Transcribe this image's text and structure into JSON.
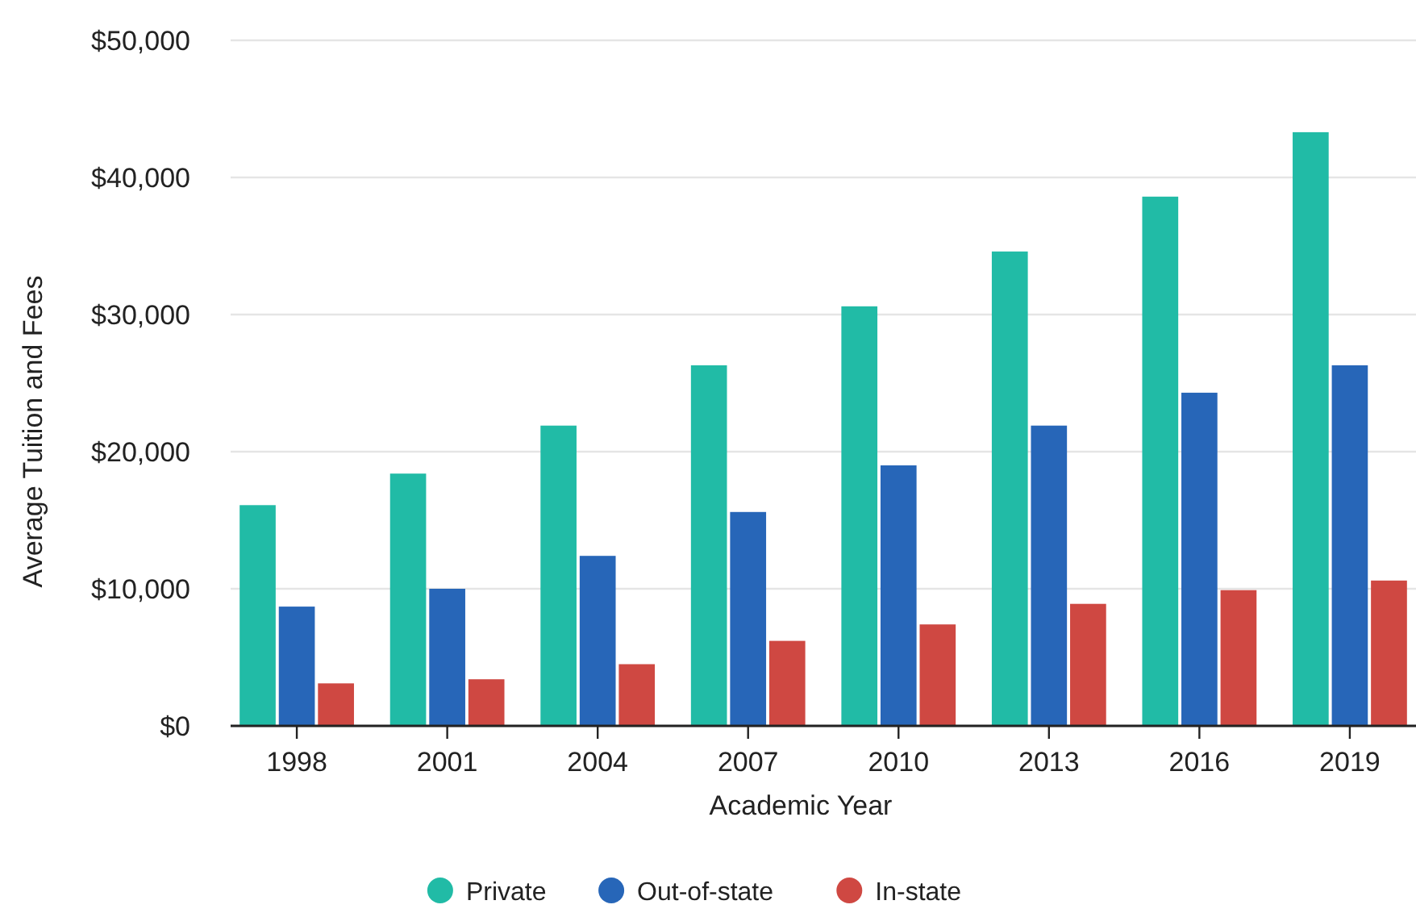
{
  "chart_data": {
    "type": "bar",
    "xlabel": "Academic Year",
    "ylabel": "Average Tuition and Fees",
    "categories": [
      "1998",
      "2001",
      "2004",
      "2007",
      "2010",
      "2013",
      "2016",
      "2019"
    ],
    "series": [
      {
        "name": "Private",
        "color": "#21bba6",
        "values": [
          16100,
          18400,
          21900,
          26300,
          30600,
          34600,
          38600,
          43300
        ]
      },
      {
        "name": "Out-of-state",
        "color": "#2766b8",
        "values": [
          8700,
          10000,
          12400,
          15600,
          19000,
          21900,
          24300,
          26300
        ]
      },
      {
        "name": "In-state",
        "color": "#cf4842",
        "values": [
          3100,
          3400,
          4500,
          6200,
          7400,
          8900,
          9900,
          10600
        ]
      }
    ],
    "ylim": [
      0,
      50000
    ],
    "yticks": [
      {
        "value": 0,
        "label": "$0"
      },
      {
        "value": 10000,
        "label": "$10,000"
      },
      {
        "value": 20000,
        "label": "$20,000"
      },
      {
        "value": 30000,
        "label": "$30,000"
      },
      {
        "value": 40000,
        "label": "$40,000"
      },
      {
        "value": 50000,
        "label": "$50,000"
      }
    ],
    "grid": "y",
    "legend": "bottom"
  }
}
